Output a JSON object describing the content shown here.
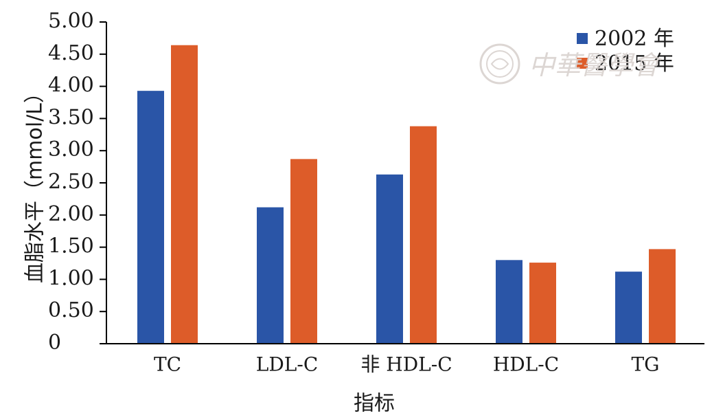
{
  "chart_data": {
    "type": "bar",
    "categories": [
      "TC",
      "LDL-C",
      "非 HDL-C",
      "HDL-C",
      "TG"
    ],
    "series": [
      {
        "name": "2002 年",
        "color": "#2a55a7",
        "values": [
          3.93,
          2.12,
          2.63,
          1.3,
          1.12
        ]
      },
      {
        "name": "2015 年",
        "color": "#dd5c29",
        "values": [
          4.64,
          2.87,
          3.38,
          1.26,
          1.47
        ]
      }
    ],
    "ylim": [
      0,
      5.0
    ],
    "yticks": [
      "0",
      "0.50",
      "1.00",
      "1.50",
      "2.00",
      "2.50",
      "3.00",
      "3.50",
      "4.00",
      "4.50",
      "5.00"
    ],
    "ylabel": "血脂水平（mmol/L）",
    "xlabel": "指标",
    "legend": "top-right",
    "grid": false
  },
  "watermark": {
    "text": "中華醫學會",
    "icon": "emblem-icon"
  }
}
